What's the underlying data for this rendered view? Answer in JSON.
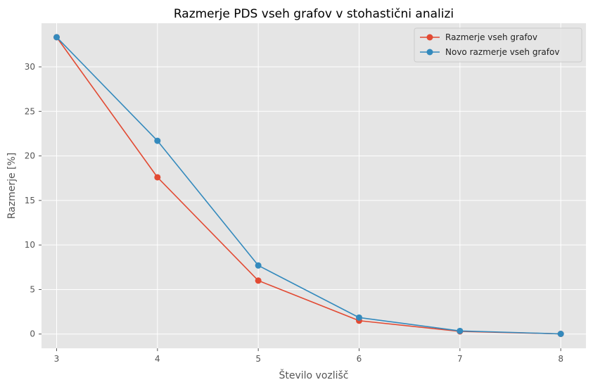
{
  "chart_data": {
    "type": "line",
    "title": "Razmerje PDS vseh grafov v stohastični analizi",
    "xlabel": "Število vozlišč",
    "ylabel": "Razmerje [%]",
    "x": [
      3,
      4,
      5,
      6,
      7,
      8
    ],
    "xlim": [
      2.85,
      8.25
    ],
    "ylim": [
      -1.6,
      34.9
    ],
    "xticks": [
      3,
      4,
      5,
      6,
      7,
      8
    ],
    "yticks": [
      0,
      5,
      10,
      15,
      20,
      25,
      30
    ],
    "grid": true,
    "legend_position": "top-right",
    "series": [
      {
        "name": "Razmerje vseh grafov",
        "color": "#E24A33",
        "values": [
          33.33,
          17.6,
          6.0,
          1.5,
          0.3,
          0.02
        ]
      },
      {
        "name": "Novo razmerje vseh grafov",
        "color": "#348ABD",
        "values": [
          33.33,
          21.7,
          7.7,
          1.85,
          0.35,
          0.02
        ]
      }
    ]
  }
}
